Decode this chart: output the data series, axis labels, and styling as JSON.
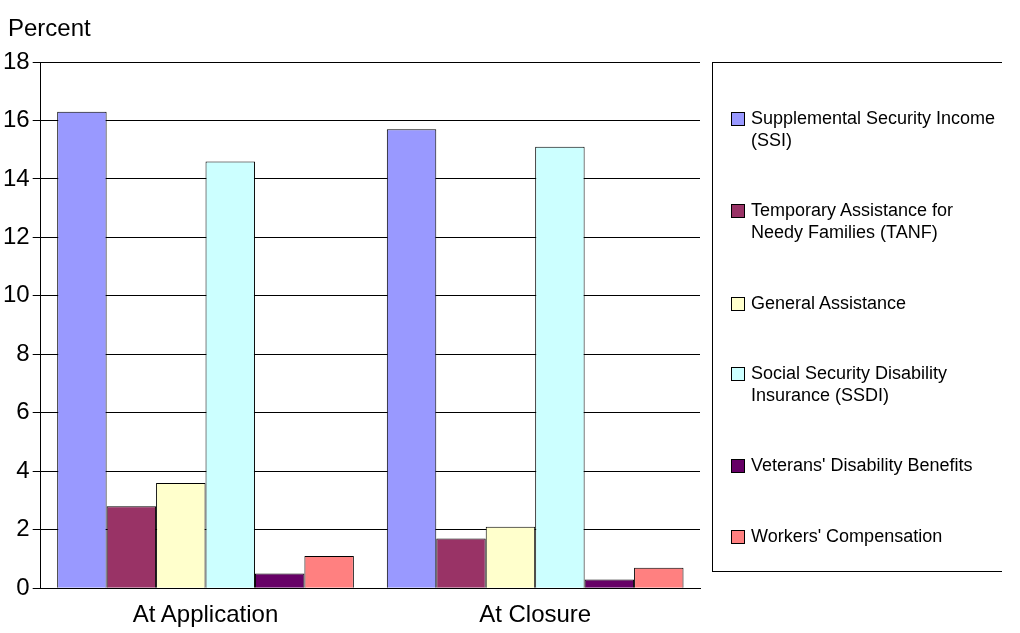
{
  "chart_data": {
    "type": "bar",
    "ylabel": "Percent",
    "categories": [
      "At Application",
      "At Closure"
    ],
    "series": [
      {
        "name": "Supplemental Security Income (SSI)",
        "color": "#9999ff",
        "values": [
          16.3,
          15.7
        ]
      },
      {
        "name": "Temporary Assistance for Needy Families (TANF)",
        "color": "#993366",
        "values": [
          2.8,
          1.7
        ]
      },
      {
        "name": "General Assistance",
        "color": "#ffffcc",
        "values": [
          3.6,
          2.1
        ]
      },
      {
        "name": "Social Security Disability Insurance (SSDI)",
        "color": "#ccffff",
        "values": [
          14.6,
          15.1
        ]
      },
      {
        "name": "Veterans' Disability Benefits",
        "color": "#660066",
        "values": [
          0.5,
          0.3
        ]
      },
      {
        "name": "Workers' Compensation",
        "color": "#ff8080",
        "values": [
          1.1,
          0.7
        ]
      }
    ],
    "ylim": [
      0,
      18
    ],
    "yticks": [
      0,
      2,
      4,
      6,
      8,
      10,
      12,
      14,
      16,
      18
    ],
    "grid": "y",
    "legend": "right"
  }
}
